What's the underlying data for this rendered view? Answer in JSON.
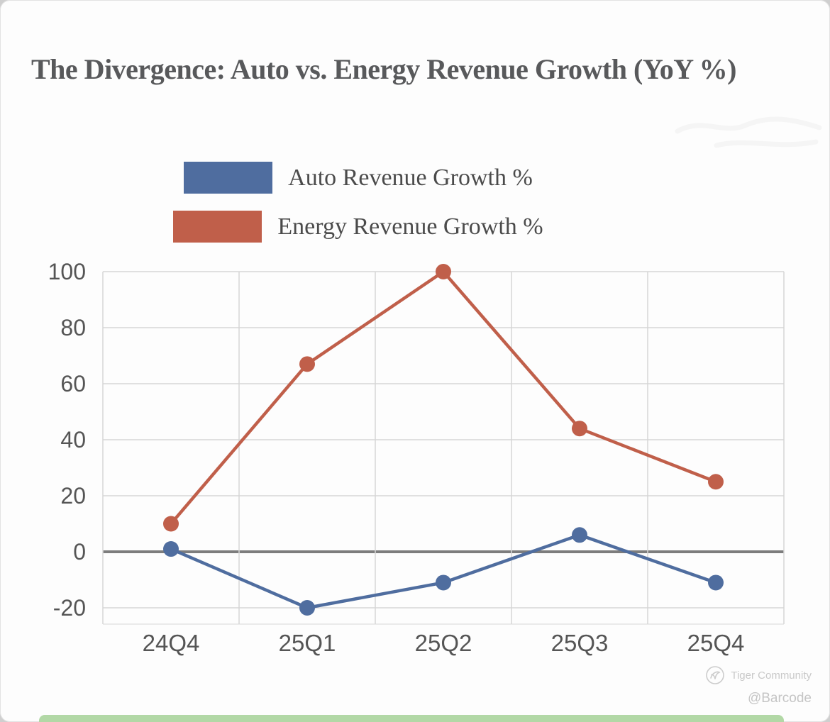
{
  "watermark": {
    "brand": "Tiger Community",
    "handle": "@Barcode"
  },
  "chart_data": {
    "type": "line",
    "title": "The Divergence: Auto vs. Energy Revenue Growth (YoY %)",
    "categories": [
      "24Q4",
      "25Q1",
      "25Q2",
      "25Q3",
      "25Q4"
    ],
    "series": [
      {
        "name": "Auto Revenue Growth %",
        "color": "#4f6d9f",
        "values": [
          1,
          -20,
          -11,
          6,
          -11
        ]
      },
      {
        "name": "Energy Revenue Growth %",
        "color": "#c05f4a",
        "values": [
          10,
          67,
          100,
          44,
          25
        ]
      }
    ],
    "xlabel": "",
    "ylabel": "",
    "ylim": [
      -20,
      100
    ],
    "yticks": [
      -20,
      0,
      20,
      40,
      60,
      80,
      100
    ],
    "grid": true,
    "legend_position": "top",
    "grid_color": "#d6d6d6",
    "zero_line_color": "#7d7d7d",
    "axis_text_color": "#555555"
  }
}
